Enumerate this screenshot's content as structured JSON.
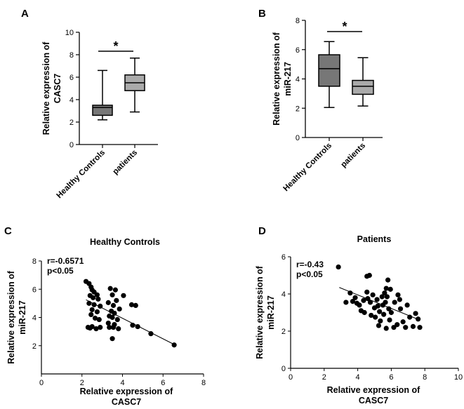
{
  "chart_data": [
    {
      "panel": "A",
      "type": "box",
      "title": "",
      "ylabel_lines": [
        "Relative expression of",
        "CASC7"
      ],
      "categories": [
        "Healthy Controls",
        "patients"
      ],
      "yticks": [
        0,
        2,
        4,
        6,
        8,
        10
      ],
      "ylim": [
        0,
        10
      ],
      "boxes": [
        {
          "name": "Healthy Controls",
          "min": 2.2,
          "q1": 2.6,
          "median": 3.3,
          "q3": 3.5,
          "max": 6.6,
          "color": "#777777"
        },
        {
          "name": "patients",
          "min": 2.9,
          "q1": 4.8,
          "median": 5.5,
          "q3": 6.2,
          "max": 7.7,
          "color": "#aaaaaa"
        }
      ],
      "significance": "*"
    },
    {
      "panel": "B",
      "type": "box",
      "title": "",
      "ylabel_lines": [
        "Relative expression of",
        "miR-217"
      ],
      "categories": [
        "Healthy Controls",
        "patients"
      ],
      "yticks": [
        0,
        2,
        4,
        6,
        8
      ],
      "ylim": [
        0,
        8
      ],
      "boxes": [
        {
          "name": "Healthy Controls",
          "min": 2.05,
          "q1": 3.5,
          "median": 4.7,
          "q3": 5.65,
          "max": 6.55,
          "color": "#777777"
        },
        {
          "name": "patients",
          "min": 2.15,
          "q1": 2.95,
          "median": 3.5,
          "q3": 3.9,
          "max": 5.45,
          "color": "#aaaaaa"
        }
      ],
      "significance": "*"
    },
    {
      "panel": "C",
      "type": "scatter",
      "title": "Healthy Controls",
      "xlabel_lines": [
        "Relative expression of",
        "CASC7"
      ],
      "ylabel_lines": [
        "Relative expression of",
        "miR-217"
      ],
      "xticks": [
        0,
        2,
        4,
        6,
        8
      ],
      "yticks": [
        2,
        4,
        6,
        8
      ],
      "xlim": [
        0,
        8
      ],
      "ylim": [
        0,
        8
      ],
      "stats": [
        "r=-0.6571",
        "p<0.05"
      ],
      "fit_line": {
        "x1": 2.2,
        "y1": 5.25,
        "x2": 6.6,
        "y2": 2.05
      },
      "points": [
        [
          2.2,
          6.55
        ],
        [
          2.35,
          6.4
        ],
        [
          2.45,
          6.15
        ],
        [
          2.5,
          5.95
        ],
        [
          2.6,
          5.8
        ],
        [
          2.75,
          5.6
        ],
        [
          2.4,
          5.55
        ],
        [
          2.55,
          5.4
        ],
        [
          2.8,
          5.3
        ],
        [
          2.35,
          5.0
        ],
        [
          2.6,
          4.9
        ],
        [
          2.9,
          4.8
        ],
        [
          2.5,
          4.55
        ],
        [
          2.75,
          4.4
        ],
        [
          2.45,
          4.2
        ],
        [
          2.65,
          3.95
        ],
        [
          2.85,
          3.85
        ],
        [
          2.3,
          3.3
        ],
        [
          2.5,
          3.35
        ],
        [
          2.7,
          3.2
        ],
        [
          2.9,
          3.3
        ],
        [
          2.4,
          3.25
        ],
        [
          3.4,
          6.05
        ],
        [
          3.65,
          5.95
        ],
        [
          3.5,
          5.6
        ],
        [
          4.05,
          5.55
        ],
        [
          3.7,
          5.2
        ],
        [
          3.3,
          5.05
        ],
        [
          3.55,
          4.85
        ],
        [
          3.85,
          4.6
        ],
        [
          3.45,
          4.45
        ],
        [
          3.6,
          4.3
        ],
        [
          3.35,
          4.1
        ],
        [
          3.5,
          4.0
        ],
        [
          3.75,
          3.85
        ],
        [
          3.3,
          3.6
        ],
        [
          3.6,
          3.5
        ],
        [
          3.35,
          3.3
        ],
        [
          3.55,
          3.3
        ],
        [
          3.8,
          3.2
        ],
        [
          3.5,
          2.5
        ],
        [
          4.45,
          4.9
        ],
        [
          4.65,
          4.85
        ],
        [
          4.5,
          3.45
        ],
        [
          4.75,
          3.35
        ],
        [
          5.4,
          2.85
        ],
        [
          6.55,
          2.05
        ]
      ],
      "marker_color": "#000000"
    },
    {
      "panel": "D",
      "type": "scatter",
      "title": "Patients",
      "xlabel_lines": [
        "Relative expression of",
        "CASC7"
      ],
      "ylabel_lines": [
        "Relative expression of",
        "miR-217"
      ],
      "xticks": [
        0,
        2,
        4,
        6,
        8,
        10
      ],
      "yticks": [
        0,
        2,
        4,
        6
      ],
      "xlim": [
        0,
        10
      ],
      "ylim": [
        0,
        6
      ],
      "stats": [
        "r=-0.43",
        "p<0.05"
      ],
      "fit_line": {
        "x1": 2.9,
        "y1": 4.35,
        "x2": 7.7,
        "y2": 2.6
      },
      "points": [
        [
          2.85,
          5.45
        ],
        [
          3.3,
          3.55
        ],
        [
          3.55,
          4.05
        ],
        [
          3.7,
          3.6
        ],
        [
          3.85,
          3.8
        ],
        [
          3.95,
          3.5
        ],
        [
          4.1,
          3.4
        ],
        [
          4.2,
          3.1
        ],
        [
          4.35,
          3.65
        ],
        [
          4.4,
          3.0
        ],
        [
          4.55,
          4.95
        ],
        [
          4.7,
          5.0
        ],
        [
          4.55,
          4.1
        ],
        [
          4.6,
          3.75
        ],
        [
          4.75,
          3.55
        ],
        [
          4.8,
          2.85
        ],
        [
          4.9,
          3.95
        ],
        [
          5.0,
          3.25
        ],
        [
          5.05,
          2.75
        ],
        [
          5.15,
          3.7
        ],
        [
          5.2,
          3.35
        ],
        [
          5.3,
          3.05
        ],
        [
          5.35,
          2.55
        ],
        [
          5.45,
          3.85
        ],
        [
          5.5,
          3.4
        ],
        [
          5.55,
          2.9
        ],
        [
          5.6,
          4.05
        ],
        [
          5.65,
          3.55
        ],
        [
          5.7,
          4.3
        ],
        [
          5.8,
          4.75
        ],
        [
          5.75,
          3.85
        ],
        [
          5.85,
          3.2
        ],
        [
          5.9,
          2.6
        ],
        [
          5.95,
          4.25
        ],
        [
          6.0,
          3.0
        ],
        [
          5.7,
          2.15
        ],
        [
          6.2,
          3.55
        ],
        [
          6.35,
          2.35
        ],
        [
          6.4,
          3.95
        ],
        [
          6.5,
          3.7
        ],
        [
          6.55,
          3.2
        ],
        [
          6.7,
          2.5
        ],
        [
          6.85,
          2.2
        ],
        [
          6.95,
          3.4
        ],
        [
          7.1,
          2.75
        ],
        [
          7.3,
          2.25
        ],
        [
          7.45,
          2.95
        ],
        [
          7.6,
          2.65
        ],
        [
          7.7,
          2.2
        ],
        [
          6.15,
          2.2
        ],
        [
          5.25,
          2.3
        ]
      ],
      "marker_color": "#000000"
    }
  ]
}
